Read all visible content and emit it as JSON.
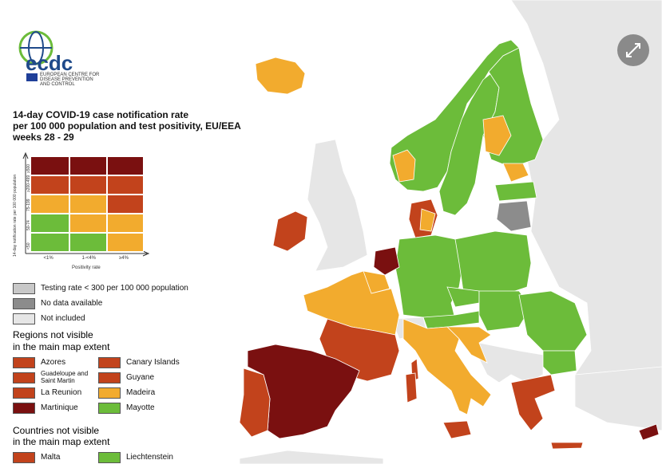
{
  "logo": {
    "acronym": "ecdc",
    "full_name": [
      "EUROPEAN CENTRE FOR",
      "DISEASE PREVENTION",
      "AND CONTROL"
    ]
  },
  "title": [
    "14-day COVID-19 case notification rate",
    "per 100 000 population and test positivity, EU/EEA",
    "weeks 28 - 29"
  ],
  "matrix": {
    "y_axis_label": "14-day notification rate per 100 000 population",
    "rate_bands": [
      "≥500",
      "≥200-499",
      "75-199",
      "50-74",
      "<50"
    ],
    "positivity_bands": [
      "<1%",
      "1-<4%",
      "≥4%"
    ],
    "x_axis_label": "Positivity rate"
  },
  "legend": [
    "Testing rate < 300 per 100 000 population",
    "No data available",
    "Not included"
  ],
  "regions": {
    "heading": [
      "Regions not visible",
      "in the main map extent"
    ],
    "items": [
      "Azores",
      "Guadeloupe and Saint Martin",
      "La Reunion",
      "Martinique",
      "Canary Islands",
      "Guyane",
      "Madeira",
      "Mayotte"
    ]
  },
  "countries": {
    "heading": [
      "Countries not visible",
      "in the main map extent"
    ],
    "items": [
      "Malta",
      "Liechtenstein"
    ]
  }
}
